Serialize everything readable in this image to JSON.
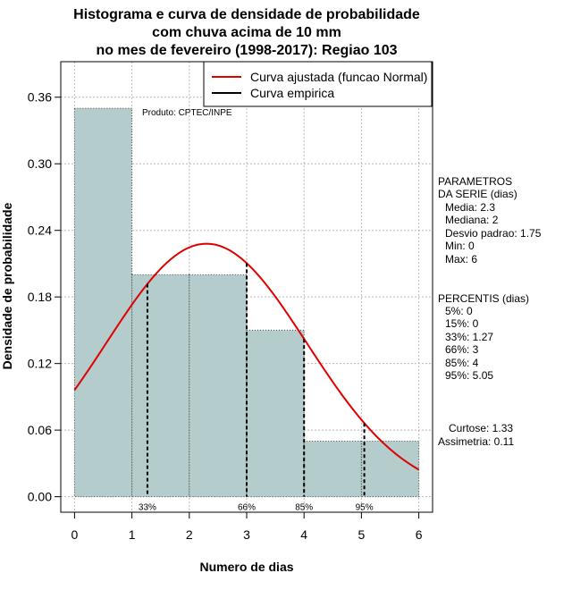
{
  "chart_data": {
    "type": "bar",
    "title_lines": [
      "Histograma e curva de densidade de probabilidade",
      "com chuva acima de 10 mm",
      "no mes de fevereiro (1998-2017): Regiao 103"
    ],
    "xlabel": "Numero de dias",
    "ylabel": "Densidade de probabilidade",
    "xlim": [
      -0.24,
      6.24
    ],
    "ylim": [
      -0.014,
      0.392
    ],
    "x_ticks": [
      0,
      1,
      2,
      3,
      4,
      5,
      6
    ],
    "y_ticks": [
      0.0,
      0.06,
      0.12,
      0.18,
      0.24,
      0.3,
      0.36
    ],
    "y_tick_labels": [
      "0.00",
      "0.06",
      "0.12",
      "0.18",
      "0.24",
      "0.30",
      "0.36"
    ],
    "bins": [
      {
        "x0": 0,
        "x1": 1,
        "value": 0.35
      },
      {
        "x0": 1,
        "x1": 2,
        "value": 0.2
      },
      {
        "x0": 2,
        "x1": 3,
        "value": 0.2
      },
      {
        "x0": 3,
        "x1": 4,
        "value": 0.15
      },
      {
        "x0": 4,
        "x1": 5,
        "value": 0.05
      },
      {
        "x0": 5,
        "x1": 6,
        "value": 0.05
      }
    ],
    "fitted_curve": {
      "name": "Curva ajustada (funcao Normal)",
      "mean": 2.3,
      "sd": 1.75,
      "color": "#e00000"
    },
    "empirical_curve": {
      "name": "Curva empirica",
      "color": "#000000"
    },
    "percentile_markers": [
      {
        "label": "33%",
        "x": 1.27
      },
      {
        "label": "66%",
        "x": 3
      },
      {
        "label": "85%",
        "x": 4
      },
      {
        "label": "95%",
        "x": 5.05
      }
    ],
    "bar_color": "#b5cccc",
    "grid": true,
    "legend_position": "top-right",
    "source_note": "Produto: CPTEC/INPE"
  },
  "stats_panel": {
    "params_title_1": "PARAMETROS",
    "params_title_2": "DA SERIE (dias)",
    "media": "Media: 2.3",
    "mediana": "Mediana: 2",
    "desvio": "Desvio padrao: 1.75",
    "min": "Min: 0",
    "max": "Max: 6",
    "percentis_title": "PERCENTIS (dias)",
    "p5": "5%: 0",
    "p15": "15%: 0",
    "p33": "33%: 1.27",
    "p66": "66%: 3",
    "p85": "85%: 4",
    "p95": "95%: 5.05",
    "curtose": "Curtose: 1.33",
    "assimetria": "Assimetria: 0.11"
  }
}
